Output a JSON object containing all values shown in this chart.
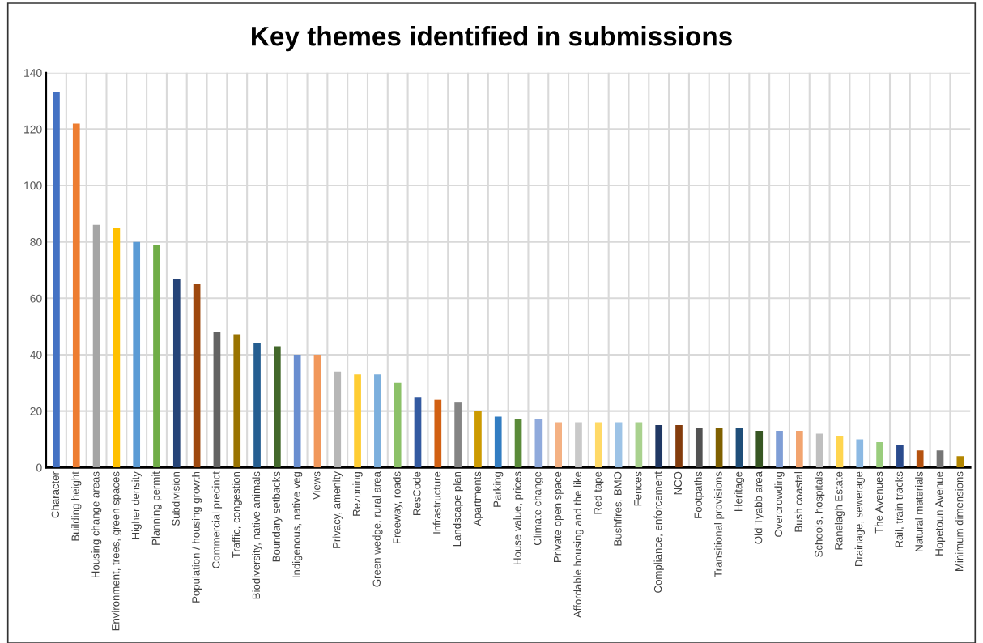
{
  "chart_data": {
    "type": "bar",
    "title": "Key themes identified in submissions",
    "categories": [
      "Character",
      "Building height",
      "Housing change areas",
      "Environment, trees, green spaces",
      "Higher density",
      "Planning permit",
      "Subdivision",
      "Population / housing growth",
      "Commercial precinct",
      "Traffic, congestion",
      "Biodiversity, native animals",
      "Boundary setbacks",
      "Indigenous, native veg",
      "Views",
      "Privacy, amenity",
      "Rezoning",
      "Green wedge, rural area",
      "Freeway, roads",
      "ResCode",
      "Infrastructure",
      "Landscape plan",
      "Apartments",
      "Parking",
      "House value, prices",
      "Climate change",
      "Private open space",
      "Affordable housing and the like",
      "Red tape",
      "Bushfires, BMO",
      "Fences",
      "Compliance, enforcement",
      "NCO",
      "Footpaths",
      "Transitional provisions",
      "Heritage",
      "Old Tyabb area",
      "Overcrowding",
      "Bush coastal",
      "Schools, hospitals",
      "Ranelagh Estate",
      "Drainage, sewerage",
      "The Avenues",
      "Rail, train tracks",
      "Natural materials",
      "Hopetoun Avenue",
      "Minimum dimensions"
    ],
    "values": [
      133,
      122,
      86,
      85,
      80,
      79,
      67,
      65,
      48,
      47,
      44,
      43,
      40,
      40,
      34,
      33,
      33,
      30,
      25,
      24,
      23,
      20,
      18,
      17,
      17,
      16,
      16,
      16,
      16,
      16,
      15,
      15,
      14,
      14,
      14,
      13,
      13,
      13,
      12,
      11,
      10,
      9,
      8,
      6,
      6,
      4
    ],
    "colors": [
      "#4472c4",
      "#ed7d31",
      "#a5a5a5",
      "#ffc000",
      "#5b9bd5",
      "#70ad47",
      "#264478",
      "#9e480e",
      "#636363",
      "#997300",
      "#255e91",
      "#43682b",
      "#698ed0",
      "#f1975a",
      "#b7b7b7",
      "#ffcd33",
      "#7cafdd",
      "#8cc168",
      "#335aa1",
      "#d26012",
      "#848484",
      "#cc9a00",
      "#327dc2",
      "#5a8a39",
      "#8faadc",
      "#f4b183",
      "#c9c9c9",
      "#ffd966",
      "#9dc3e6",
      "#a9d18e",
      "#203864",
      "#843c0c",
      "#525252",
      "#7f6000",
      "#1f4e79",
      "#375623",
      "#7f9ed6",
      "#f2a46f",
      "#bfbfbf",
      "#ffd54f",
      "#8cb9e3",
      "#9acd7d",
      "#2a4b8d",
      "#b5520f",
      "#757575",
      "#b38600"
    ],
    "ylim": [
      0,
      140
    ],
    "yticks": [
      0,
      20,
      40,
      60,
      80,
      100,
      120,
      140
    ],
    "grid": true
  }
}
